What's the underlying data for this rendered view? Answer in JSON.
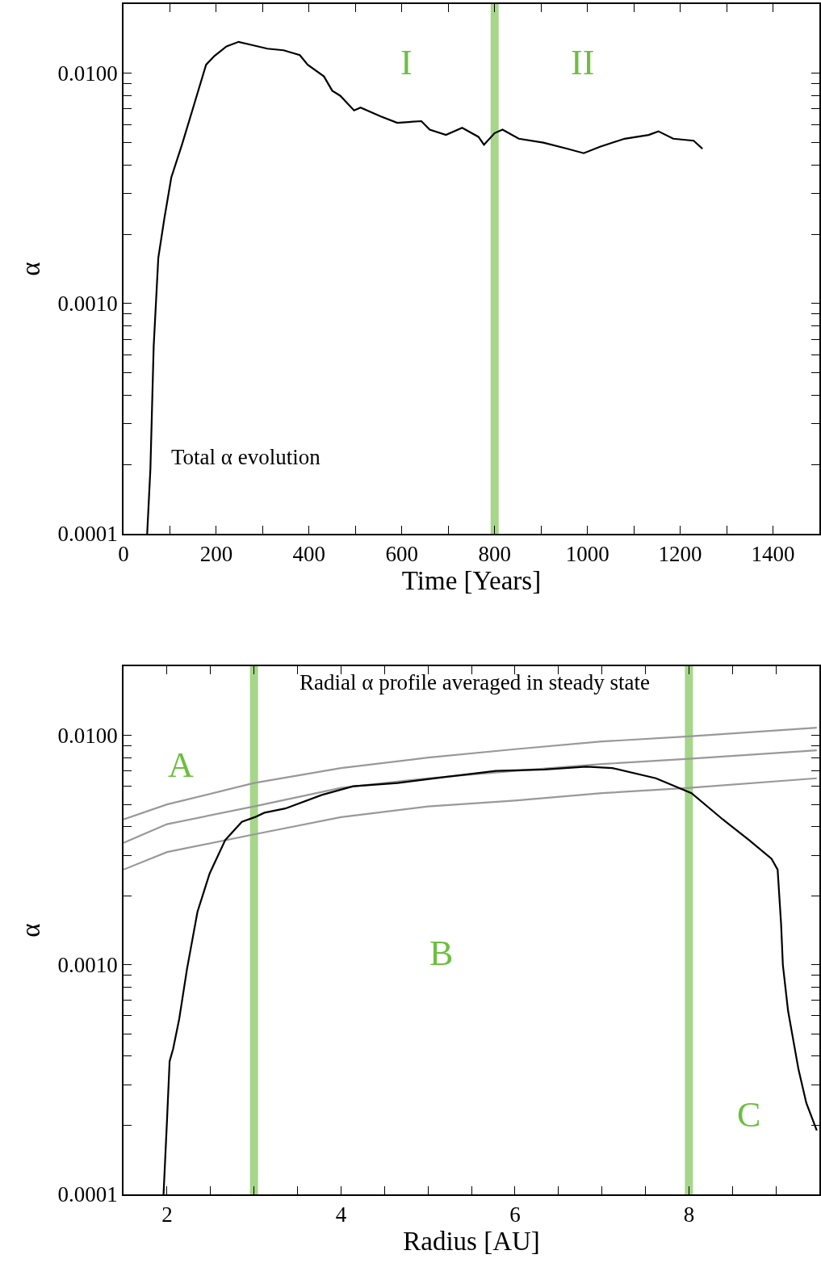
{
  "chart_data": [
    {
      "type": "line",
      "xlabel": "Time [Years]",
      "ylabel": "α",
      "log": "y",
      "grid": false,
      "marker": "none",
      "line_style": "solid",
      "xlim": [
        0,
        1500
      ],
      "xticks": [
        0,
        {
          "value": 100,
          "label": null
        },
        200,
        {
          "value": 300,
          "label": null
        },
        400,
        {
          "value": 500,
          "label": null
        },
        600,
        {
          "value": 700,
          "label": null
        },
        800,
        {
          "value": 900,
          "label": null
        },
        1000,
        {
          "value": 1100,
          "label": null
        },
        1200,
        {
          "value": 1300,
          "label": null
        },
        1400,
        {
          "value": 1500,
          "label": null
        }
      ],
      "ylim": [
        0.0001,
        0.02
      ],
      "yticks": [
        0.0001,
        {
          "value": 0.0002,
          "label": null
        },
        {
          "value": 0.0003,
          "label": null
        },
        {
          "value": 0.0004,
          "label": null
        },
        {
          "value": 0.0005,
          "label": null
        },
        {
          "value": 0.0006,
          "label": null
        },
        {
          "value": 0.0007,
          "label": null
        },
        {
          "value": 0.0008,
          "label": null
        },
        {
          "value": 0.0009,
          "label": null
        },
        {
          "value": 0.001,
          "label": "0.0010"
        },
        {
          "value": 0.002,
          "label": null
        },
        {
          "value": 0.003,
          "label": null
        },
        {
          "value": 0.004,
          "label": null
        },
        {
          "value": 0.005,
          "label": null
        },
        {
          "value": 0.006,
          "label": null
        },
        {
          "value": 0.007,
          "label": null
        },
        {
          "value": 0.008,
          "label": null
        },
        {
          "value": 0.009,
          "label": null
        },
        {
          "value": 0.01,
          "label": "0.0100"
        },
        {
          "value": 0.02,
          "label": null
        }
      ],
      "series": [
        {
          "color": "#000000",
          "x": [
            51,
            58,
            65,
            75,
            88,
            103,
            126,
            152,
            178,
            196,
            222,
            248,
            275,
            310,
            345,
            380,
            397,
            432,
            450,
            467,
            497,
            511,
            555,
            590,
            642,
            660,
            695,
            730,
            765,
            777,
            800,
            817,
            852,
            905,
            957,
            992,
            1027,
            1080,
            1132,
            1153,
            1185,
            1229,
            1248
          ],
          "values": [
            0.0001,
            0.000192,
            0.00065,
            0.00158,
            0.00234,
            0.00353,
            0.0049,
            0.0073,
            0.0109,
            0.0119,
            0.0131,
            0.0137,
            0.0133,
            0.0128,
            0.0126,
            0.012,
            0.0109,
            0.0097,
            0.0084,
            0.008,
            0.0069,
            0.0071,
            0.0065,
            0.0061,
            0.0062,
            0.0057,
            0.0054,
            0.0058,
            0.0053,
            0.0049,
            0.0055,
            0.0057,
            0.0052,
            0.005,
            0.0047,
            0.0045,
            0.0048,
            0.0052,
            0.0054,
            0.0056,
            0.0052,
            0.0051,
            0.0047
          ]
        }
      ],
      "ref_lines": [
        {
          "axis": "x",
          "value": 800,
          "color": "#a6d68a"
        }
      ],
      "annotations": [
        "I",
        "II",
        "Total α evolution"
      ]
    },
    {
      "type": "line",
      "xlabel": "Radius [AU]",
      "ylabel": "α",
      "log": "y",
      "grid": false,
      "marker": "none",
      "line_style": "solid",
      "xlim": [
        1.5,
        9.5
      ],
      "xticks": [
        {
          "value": 1.5,
          "label": null
        },
        2,
        {
          "value": 2.5,
          "label": null
        },
        {
          "value": 3,
          "label": null
        },
        {
          "value": 3.5,
          "label": null
        },
        4,
        {
          "value": 4.5,
          "label": null
        },
        {
          "value": 5,
          "label": null
        },
        {
          "value": 5.5,
          "label": null
        },
        6,
        {
          "value": 6.5,
          "label": null
        },
        {
          "value": 7,
          "label": null
        },
        {
          "value": 7.5,
          "label": null
        },
        8,
        {
          "value": 8.5,
          "label": null
        },
        {
          "value": 9,
          "label": null
        },
        {
          "value": 9.5,
          "label": null
        }
      ],
      "ylim": [
        0.0001,
        0.02
      ],
      "yticks": [
        0.0001,
        {
          "value": 0.0002,
          "label": null
        },
        {
          "value": 0.0003,
          "label": null
        },
        {
          "value": 0.0004,
          "label": null
        },
        {
          "value": 0.0005,
          "label": null
        },
        {
          "value": 0.0006,
          "label": null
        },
        {
          "value": 0.0007,
          "label": null
        },
        {
          "value": 0.0008,
          "label": null
        },
        {
          "value": 0.0009,
          "label": null
        },
        {
          "value": 0.001,
          "label": "0.0010"
        },
        {
          "value": 0.002,
          "label": null
        },
        {
          "value": 0.003,
          "label": null
        },
        {
          "value": 0.004,
          "label": null
        },
        {
          "value": 0.005,
          "label": null
        },
        {
          "value": 0.006,
          "label": null
        },
        {
          "value": 0.007,
          "label": null
        },
        {
          "value": 0.008,
          "label": null
        },
        {
          "value": 0.009,
          "label": null
        },
        {
          "value": 0.01,
          "label": "0.0100"
        },
        {
          "value": 0.02,
          "label": null
        }
      ],
      "series": [
        {
          "color": "#999999",
          "x": [
            1.5,
            2,
            3,
            4,
            5,
            6,
            7,
            8,
            9.47
          ],
          "values": [
            0.0043,
            0.005,
            0.0062,
            0.0072,
            0.008,
            0.0087,
            0.0094,
            0.0099,
            0.0108
          ]
        },
        {
          "color": "#999999",
          "x": [
            1.5,
            2,
            3,
            4,
            5,
            6,
            7,
            8,
            9.47
          ],
          "values": [
            0.0034,
            0.0041,
            0.0049,
            0.0059,
            0.0065,
            0.007,
            0.0075,
            0.0079,
            0.0086
          ]
        },
        {
          "color": "#999999",
          "x": [
            1.5,
            2,
            3,
            4,
            5,
            6,
            7,
            8,
            9.47
          ],
          "values": [
            0.0026,
            0.0031,
            0.0037,
            0.0044,
            0.0049,
            0.0052,
            0.0056,
            0.0059,
            0.0065
          ]
        },
        {
          "color": "#000000",
          "x": [
            1.96,
            2,
            2.03,
            2.07,
            2.14,
            2.23,
            2.35,
            2.49,
            2.67,
            2.86,
            3.01,
            3.12,
            3.36,
            3.78,
            4.14,
            4.65,
            5.22,
            5.78,
            6.34,
            6.82,
            7.12,
            7.62,
            8.03,
            8.39,
            8.69,
            8.95,
            9.02,
            9.06,
            9.08,
            9.14,
            9.26,
            9.35,
            9.47
          ],
          "values": [
            0.0001,
            0.00021,
            0.00038,
            0.00043,
            0.00058,
            0.00096,
            0.0017,
            0.0025,
            0.0035,
            0.0042,
            0.0044,
            0.0046,
            0.0048,
            0.0055,
            0.006,
            0.0062,
            0.0066,
            0.007,
            0.0071,
            0.0073,
            0.0072,
            0.0065,
            0.0056,
            0.0043,
            0.0035,
            0.0029,
            0.0026,
            0.0015,
            0.001,
            0.00063,
            0.00035,
            0.00025,
            0.00019
          ]
        }
      ],
      "ref_lines": [
        {
          "axis": "x",
          "value": 3,
          "color": "#a6d68a"
        },
        {
          "axis": "x",
          "value": 8,
          "color": "#a6d68a"
        }
      ],
      "annotations": [
        "A",
        "B",
        "C",
        "Radial α profile averaged in steady state"
      ]
    }
  ]
}
